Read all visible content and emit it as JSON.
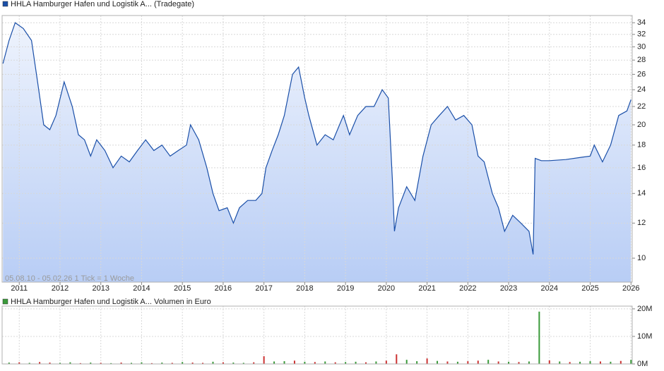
{
  "chart_data": [
    {
      "type": "line",
      "title": "HHLA Hamburger Hafen und Logistik A... (Tradegate)",
      "annotation": "05.08.10 - 05.02.26   1 Tick = 1 Woche",
      "log_scale": true,
      "grid": true,
      "xlim": [
        2010.58,
        2026.03
      ],
      "xticks": [
        2011,
        2012,
        2013,
        2014,
        2015,
        2016,
        2017,
        2018,
        2019,
        2020,
        2021,
        2022,
        2023,
        2024,
        2025,
        2026
      ],
      "ylim": [
        8.83,
        35.3
      ],
      "yticks": [
        10,
        12,
        14,
        16,
        18,
        20,
        22,
        24,
        26,
        28,
        30,
        32,
        34
      ],
      "series": [
        {
          "color": "#1a4fa8",
          "x": [
            2010.6,
            2010.75,
            2010.9,
            2011.1,
            2011.3,
            2011.45,
            2011.6,
            2011.75,
            2011.9,
            2012.1,
            2012.3,
            2012.45,
            2012.6,
            2012.75,
            2012.9,
            2013.1,
            2013.3,
            2013.5,
            2013.7,
            2013.9,
            2014.1,
            2014.3,
            2014.5,
            2014.7,
            2014.9,
            2015.1,
            2015.2,
            2015.4,
            2015.6,
            2015.75,
            2015.9,
            2016.1,
            2016.25,
            2016.4,
            2016.6,
            2016.8,
            2016.95,
            2017.05,
            2017.2,
            2017.35,
            2017.5,
            2017.7,
            2017.85,
            2018.0,
            2018.1,
            2018.3,
            2018.5,
            2018.7,
            2018.95,
            2019.1,
            2019.3,
            2019.5,
            2019.7,
            2019.9,
            2020.05,
            2020.15,
            2020.2,
            2020.3,
            2020.5,
            2020.7,
            2020.9,
            2021.1,
            2021.3,
            2021.5,
            2021.7,
            2021.9,
            2022.1,
            2022.25,
            2022.4,
            2022.6,
            2022.75,
            2022.9,
            2023.1,
            2023.3,
            2023.5,
            2023.6,
            2023.65,
            2023.8,
            2024.0,
            2024.4,
            2024.8,
            2025.0,
            2025.1,
            2025.3,
            2025.5,
            2025.7,
            2025.9,
            2026.0
          ],
          "values": [
            27.5,
            31,
            34,
            33,
            31,
            25,
            20,
            19.5,
            21,
            25,
            22,
            19,
            18.5,
            17,
            18.5,
            17.5,
            16,
            17,
            16.5,
            17.5,
            18.5,
            17.5,
            18,
            17,
            17.5,
            18,
            20,
            18.5,
            16,
            14,
            12.8,
            13,
            12,
            13,
            13.5,
            13.5,
            14,
            16,
            17.5,
            19,
            21,
            26,
            27,
            23,
            21,
            18,
            19,
            18.5,
            21,
            19,
            21,
            22,
            22,
            24,
            23,
            15,
            11.5,
            13,
            14.5,
            13.5,
            17,
            20,
            21,
            22,
            20.5,
            21,
            20,
            17,
            16.5,
            14,
            13,
            11.5,
            12.5,
            12,
            11.5,
            10.2,
            16.8,
            16.6,
            16.6,
            16.7,
            16.9,
            17,
            18,
            16.5,
            18,
            21,
            21.5,
            22.8
          ]
        }
      ]
    },
    {
      "type": "bar",
      "title": "HHLA Hamburger Hafen und Logistik A... Volumen in Euro",
      "grid": true,
      "xlim": [
        2010.58,
        2026.03
      ],
      "ylim": [
        0,
        21000000
      ],
      "yticks": [
        {
          "value": 0,
          "label": "0M"
        },
        {
          "value": 10000000,
          "label": "10M"
        },
        {
          "value": 20000000,
          "label": "20M"
        }
      ],
      "x": [
        2010.75,
        2011.0,
        2011.25,
        2011.5,
        2011.75,
        2012.0,
        2012.25,
        2012.5,
        2012.75,
        2013.0,
        2013.25,
        2013.5,
        2013.75,
        2014.0,
        2014.25,
        2014.5,
        2014.75,
        2015.0,
        2015.25,
        2015.5,
        2015.75,
        2016.0,
        2016.25,
        2016.5,
        2016.75,
        2017.0,
        2017.25,
        2017.5,
        2017.75,
        2018.0,
        2018.25,
        2018.5,
        2018.75,
        2019.0,
        2019.25,
        2019.5,
        2019.75,
        2020.0,
        2020.25,
        2020.5,
        2020.75,
        2021.0,
        2021.25,
        2021.5,
        2021.75,
        2022.0,
        2022.25,
        2022.5,
        2022.75,
        2023.0,
        2023.25,
        2023.5,
        2023.75,
        2024.0,
        2024.25,
        2024.5,
        2024.75,
        2025.0,
        2025.25,
        2025.5,
        2025.75,
        2026.0
      ],
      "values": [
        500000,
        600000,
        400000,
        700000,
        500000,
        400000,
        600000,
        300000,
        500000,
        400000,
        300000,
        500000,
        400000,
        600000,
        300000,
        500000,
        400000,
        700000,
        500000,
        400000,
        800000,
        600000,
        500000,
        400000,
        600000,
        2800000,
        900000,
        1000000,
        1200000,
        800000,
        700000,
        900000,
        600000,
        700000,
        800000,
        600000,
        900000,
        1200000,
        3500000,
        1500000,
        1000000,
        2000000,
        1100000,
        900000,
        800000,
        1000000,
        1200000,
        1500000,
        900000,
        800000,
        700000,
        900000,
        19000000,
        1300000,
        900000,
        700000,
        800000,
        1000000,
        900000,
        800000,
        1100000,
        1500000
      ],
      "colors": [
        "#3a9a3a",
        "#cc3333",
        "#3a9a3a",
        "#cc3333",
        "#cc3333",
        "#3a9a3a",
        "#3a9a3a",
        "#cc3333",
        "#3a9a3a",
        "#cc3333",
        "#3a9a3a",
        "#cc3333",
        "#3a9a3a",
        "#3a9a3a",
        "#cc3333",
        "#3a9a3a",
        "#cc3333",
        "#3a9a3a",
        "#cc3333",
        "#cc3333",
        "#3a9a3a",
        "#cc3333",
        "#3a9a3a",
        "#3a9a3a",
        "#cc3333",
        "#cc3333",
        "#3a9a3a",
        "#3a9a3a",
        "#cc3333",
        "#3a9a3a",
        "#cc3333",
        "#3a9a3a",
        "#cc3333",
        "#3a9a3a",
        "#3a9a3a",
        "#cc3333",
        "#3a9a3a",
        "#cc3333",
        "#cc3333",
        "#3a9a3a",
        "#3a9a3a",
        "#cc3333",
        "#3a9a3a",
        "#cc3333",
        "#3a9a3a",
        "#cc3333",
        "#cc3333",
        "#3a9a3a",
        "#cc3333",
        "#3a9a3a",
        "#cc3333",
        "#3a9a3a",
        "#3a9a3a",
        "#cc3333",
        "#3a9a3a",
        "#cc3333",
        "#3a9a3a",
        "#3a9a3a",
        "#cc3333",
        "#3a9a3a",
        "#cc3333",
        "#3a9a3a"
      ]
    }
  ]
}
